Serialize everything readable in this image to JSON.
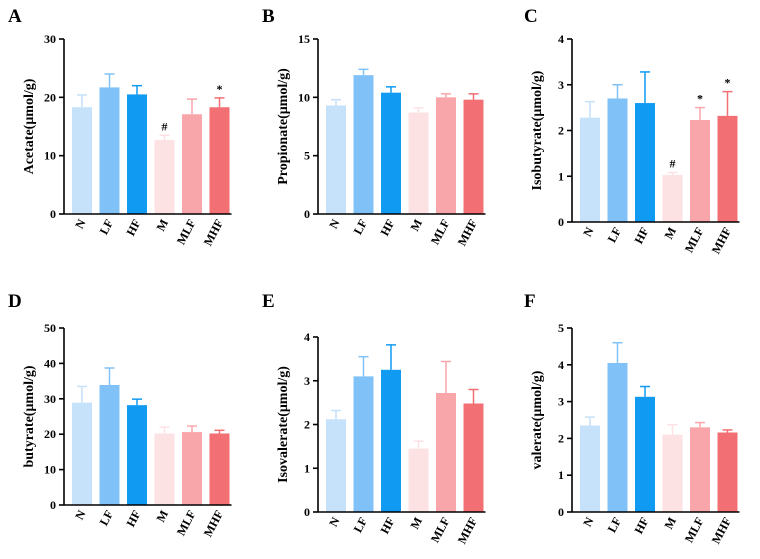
{
  "colors": {
    "N": "#c6e1fa",
    "LF": "#80c1f7",
    "HF": "#109af2",
    "M": "#fde2e4",
    "MLF": "#f9a6ab",
    "MHF": "#f26f73"
  },
  "chart_data": [
    {
      "panel": "A",
      "type": "bar",
      "ylabel": "Acetate(μmol/g)",
      "categories": [
        "N",
        "LF",
        "HF",
        "M",
        "MLF",
        "MHF"
      ],
      "values": [
        18.3,
        21.7,
        20.5,
        12.7,
        17.1,
        18.3
      ],
      "errors": [
        2.1,
        2.3,
        1.5,
        0.8,
        2.6,
        1.6
      ],
      "annotations": [
        "",
        "",
        "",
        "#",
        "",
        "*"
      ],
      "ylim": [
        0,
        30
      ],
      "yticks": [
        0,
        10,
        20,
        30
      ]
    },
    {
      "panel": "B",
      "type": "bar",
      "ylabel": "Propionate(μmol/g)",
      "categories": [
        "N",
        "LF",
        "HF",
        "M",
        "MLF",
        "MHF"
      ],
      "values": [
        9.3,
        11.9,
        10.4,
        8.7,
        10.0,
        9.8
      ],
      "errors": [
        0.5,
        0.5,
        0.5,
        0.4,
        0.3,
        0.5
      ],
      "annotations": [
        "",
        "",
        "",
        "",
        "",
        ""
      ],
      "ylim": [
        0,
        15
      ],
      "yticks": [
        0,
        5,
        10,
        15
      ]
    },
    {
      "panel": "C",
      "type": "bar",
      "ylabel": "Isobutyrate(μmol/g)",
      "categories": [
        "N",
        "LF",
        "HF",
        "M",
        "MLF",
        "MHF"
      ],
      "values": [
        2.28,
        2.7,
        2.6,
        1.03,
        2.23,
        2.32
      ],
      "errors": [
        0.35,
        0.3,
        0.68,
        0.05,
        0.27,
        0.53
      ],
      "annotations": [
        "",
        "",
        "",
        "#",
        "*",
        "*"
      ],
      "ylim": [
        0,
        4
      ],
      "yticks": [
        0,
        1,
        2,
        3,
        4
      ]
    },
    {
      "panel": "D",
      "type": "bar",
      "ylabel": "butyrate(μmol/g)",
      "categories": [
        "N",
        "LF",
        "HF",
        "M",
        "MLF",
        "MHF"
      ],
      "values": [
        28.9,
        33.9,
        28.2,
        20.2,
        20.6,
        20.2
      ],
      "errors": [
        4.6,
        4.8,
        1.7,
        1.8,
        1.7,
        0.9
      ],
      "annotations": [
        "",
        "",
        "",
        "",
        "",
        ""
      ],
      "ylim": [
        0,
        50
      ],
      "yticks": [
        0,
        10,
        20,
        30,
        40,
        50
      ]
    },
    {
      "panel": "E",
      "type": "bar",
      "ylabel": "Isovalerate(μmol/g)",
      "categories": [
        "N",
        "LF",
        "HF",
        "M",
        "MLF",
        "MHF"
      ],
      "values": [
        2.12,
        3.1,
        3.25,
        1.45,
        2.72,
        2.48
      ],
      "errors": [
        0.2,
        0.45,
        0.57,
        0.17,
        0.72,
        0.32
      ],
      "annotations": [
        "",
        "",
        "",
        "",
        "",
        ""
      ],
      "ylim": [
        0,
        4
      ],
      "yticks": [
        0,
        1,
        2,
        3,
        4
      ]
    },
    {
      "panel": "F",
      "type": "bar",
      "ylabel": "valerate(μmol/g)",
      "categories": [
        "N",
        "LF",
        "HF",
        "M",
        "MLF",
        "MHF"
      ],
      "values": [
        2.35,
        4.05,
        3.13,
        2.1,
        2.3,
        2.16
      ],
      "errors": [
        0.23,
        0.55,
        0.28,
        0.27,
        0.13,
        0.07
      ],
      "annotations": [
        "",
        "",
        "",
        "",
        "",
        ""
      ],
      "ylim": [
        0,
        5
      ],
      "yticks": [
        0,
        1,
        2,
        3,
        4,
        5
      ]
    }
  ]
}
